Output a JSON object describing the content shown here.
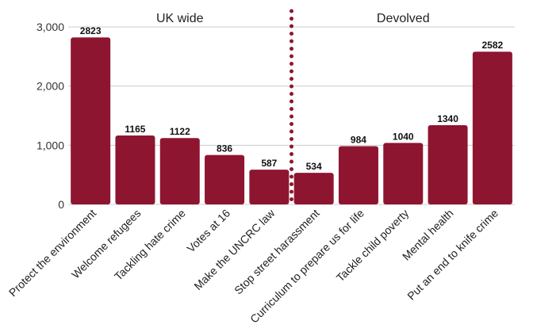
{
  "chart_data": {
    "type": "bar",
    "title": "",
    "xlabel": "",
    "ylabel": "",
    "ylim": [
      0,
      3000
    ],
    "yticks": [
      0,
      1000,
      2000,
      3000
    ],
    "ytick_labels": [
      "0",
      "1,000",
      "2,000",
      "3,000"
    ],
    "grid": true,
    "categories": [
      "Protect the environment",
      "Welcome refugees",
      "Tackling hate crime",
      "Votes at 16",
      "Make the UNCRC law",
      "Stop street harassment",
      "Curriculum to prepare us for life",
      "Tackle child poverty",
      "Mental health",
      "Put an end to knife crime"
    ],
    "values": [
      2823,
      1165,
      1122,
      836,
      587,
      534,
      984,
      1040,
      1340,
      2582
    ],
    "value_labels": [
      "2823",
      "1165",
      "1122",
      "836",
      "587",
      "534",
      "984",
      "1040",
      "1340",
      "2582"
    ],
    "groups": [
      {
        "label": "UK wide",
        "start": 0,
        "end": 4
      },
      {
        "label": "Devolved",
        "start": 5,
        "end": 9
      }
    ],
    "divider_after_index": 4,
    "colors": {
      "bar": "#8e1530",
      "divider": "#8e1530",
      "grid": "#cccccc"
    }
  }
}
